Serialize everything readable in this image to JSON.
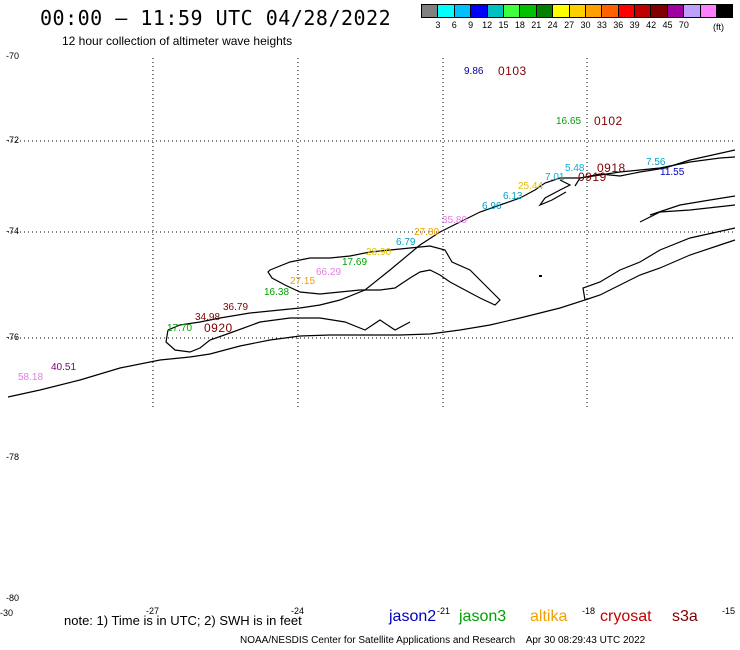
{
  "header": {
    "title": "00:00 – 11:59 UTC 04/28/2022",
    "subtitle": "12 hour collection of altimeter wave heights"
  },
  "colorbar": {
    "colors": [
      "#808080",
      "#00ffff",
      "#00c0ff",
      "#0000ff",
      "#00c0c0",
      "#40ff40",
      "#00c000",
      "#008000",
      "#ffff00",
      "#ffd000",
      "#ffa000",
      "#ff6000",
      "#ff0000",
      "#c00000",
      "#800000",
      "#a000a0",
      "#c0a0ff",
      "#ff80ff",
      "#000000"
    ],
    "labels": [
      "3",
      "6",
      "9",
      "12",
      "15",
      "18",
      "21",
      "24",
      "27",
      "30",
      "33",
      "36",
      "39",
      "42",
      "45",
      "70"
    ],
    "unit": "(ft)"
  },
  "axes": {
    "lat_labels": [
      "-70",
      "-72",
      "-74",
      "-76",
      "-78",
      "-78",
      "-80"
    ],
    "lon_labels": [
      "-30",
      "-27",
      "-24",
      "-21",
      "-18",
      "-15"
    ]
  },
  "wave_heights": [
    {
      "text": "9.86",
      "color": "#0000a0"
    },
    {
      "text": "16.65",
      "color": "#00a000"
    },
    {
      "text": "7.56",
      "color": "#00a0c0"
    },
    {
      "text": "11.55",
      "color": "#0000c0"
    },
    {
      "text": "5.48",
      "color": "#00b0e0"
    },
    {
      "text": "7.01",
      "color": "#00b0e0"
    },
    {
      "text": "25.44",
      "color": "#e0c000"
    },
    {
      "text": "6.13",
      "color": "#00a0c0"
    },
    {
      "text": "6.96",
      "color": "#00a0c0"
    },
    {
      "text": "35.89",
      "color": "#e080e0"
    },
    {
      "text": "27.80",
      "color": "#f0a000"
    },
    {
      "text": "6.79",
      "color": "#00a0c0"
    },
    {
      "text": "28.90",
      "color": "#e0c000"
    },
    {
      "text": "17.69",
      "color": "#00a000"
    },
    {
      "text": "66.29",
      "color": "#e080e0"
    },
    {
      "text": "27.15",
      "color": "#f0a000"
    },
    {
      "text": "16.38",
      "color": "#00a000"
    },
    {
      "text": "36.79",
      "color": "#800000"
    },
    {
      "text": "34.98",
      "color": "#800000"
    },
    {
      "text": "17.70",
      "color": "#00a000"
    },
    {
      "text": "40.51",
      "color": "#800080"
    },
    {
      "text": "58.18",
      "color": "#e080e0"
    }
  ],
  "time_labels": [
    {
      "text": "0103",
      "color": "#800000"
    },
    {
      "text": "0102",
      "color": "#800000"
    },
    {
      "text": "0918",
      "color": "#800000"
    },
    {
      "text": "0919",
      "color": "#800000"
    },
    {
      "text": "0920",
      "color": "#800000"
    }
  ],
  "footer": {
    "note": "note: 1) Time is in UTC; 2) SWH is in feet",
    "satellites": [
      {
        "name": "jason2",
        "color": "#0000c0"
      },
      {
        "name": "jason3",
        "color": "#00a000"
      },
      {
        "name": "altika",
        "color": "#f0a000"
      },
      {
        "name": "cryosat",
        "color": "#c00000"
      },
      {
        "name": "s3a",
        "color": "#800000"
      }
    ],
    "credit": "NOAA/NESDIS Center for Satellite Applications and Research",
    "timestamp": "Apr 30 08:29:43 UTC 2022"
  }
}
